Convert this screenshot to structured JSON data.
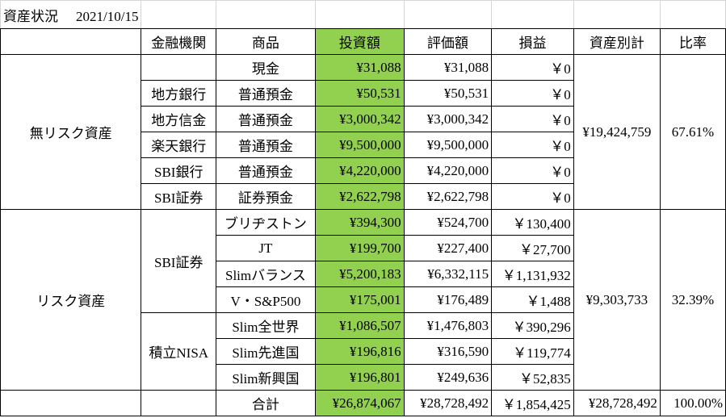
{
  "header": {
    "title": "資産状況",
    "date": "2021/10/15"
  },
  "table": {
    "columns": [
      "金融機関",
      "商品",
      "投資額",
      "評価額",
      "損益",
      "資産別計",
      "比率"
    ],
    "groups": [
      {
        "label": "無リスク資産",
        "subtotal": "¥19,424,759",
        "ratio": "67.61%",
        "institutions": [
          {
            "name": null,
            "rows": [
              [
                "現金",
                "¥31,088",
                "¥31,088",
                "￥0"
              ]
            ]
          },
          {
            "name": "地方銀行",
            "rows": [
              [
                "普通預金",
                "¥50,531",
                "¥50,531",
                "￥0"
              ]
            ]
          },
          {
            "name": "地方信金",
            "rows": [
              [
                "普通預金",
                "¥3,000,342",
                "¥3,000,342",
                "￥0"
              ]
            ]
          },
          {
            "name": "楽天銀行",
            "rows": [
              [
                "普通預金",
                "¥9,500,000",
                "¥9,500,000",
                "￥0"
              ]
            ]
          },
          {
            "name": "SBI銀行",
            "rows": [
              [
                "普通預金",
                "¥4,220,000",
                "¥4,220,000",
                "￥0"
              ]
            ]
          },
          {
            "name": "SBI証券",
            "rows": [
              [
                "証券預金",
                "¥2,622,798",
                "¥2,622,798",
                "￥0"
              ]
            ]
          }
        ]
      },
      {
        "label": "リスク資産",
        "subtotal": "¥9,303,733",
        "ratio": "32.39%",
        "institutions": [
          {
            "name": "SBI証券",
            "rows": [
              [
                "ブリヂストン",
                "¥394,300",
                "¥524,700",
                "￥130,400"
              ],
              [
                "JT",
                "¥199,700",
                "¥227,400",
                "￥27,700"
              ],
              [
                "Slimバランス",
                "¥5,200,183",
                "¥6,332,115",
                "￥1,131,932"
              ],
              [
                "V・S&P500",
                "¥175,001",
                "¥176,489",
                "￥1,488"
              ]
            ]
          },
          {
            "name": "積立NISA",
            "rows": [
              [
                "Slim全世界",
                "¥1,086,507",
                "¥1,476,803",
                "￥390,296"
              ],
              [
                "Slim先進国",
                "¥196,816",
                "¥316,590",
                "￥119,774"
              ],
              [
                "Slim新興国",
                "¥196,801",
                "¥249,636",
                "￥52,835"
              ]
            ]
          }
        ]
      }
    ],
    "total": {
      "label": "合計",
      "invest": "¥26,874,067",
      "value": "¥28,728,492",
      "pl": "￥1,854,425",
      "subtotal": "¥28,728,492",
      "ratio": "100.00%"
    }
  }
}
